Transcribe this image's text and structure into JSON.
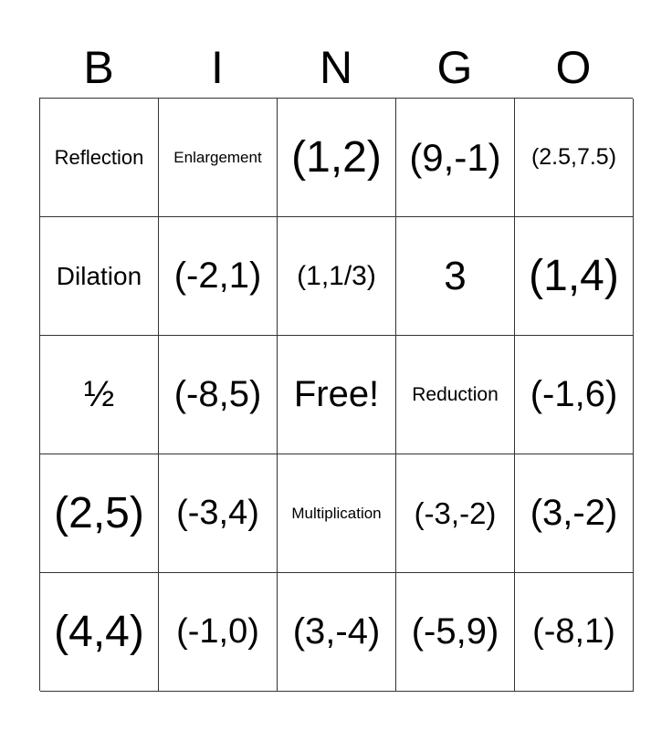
{
  "header": [
    "B",
    "I",
    "N",
    "G",
    "O"
  ],
  "cells": [
    [
      "Reflection",
      "Enlargement",
      "(1,2)",
      "(9,-1)",
      "(2.5,7.5)"
    ],
    [
      "Dilation",
      "(-2,1)",
      "(1,1/3)",
      "3",
      "(1,4)"
    ],
    [
      "½",
      "(-8,5)",
      "Free!",
      "Reduction",
      "(-1,6)"
    ],
    [
      "(2,5)",
      "(-3,4)",
      "Multiplication",
      "(-3,-2)",
      "(3,-2)"
    ],
    [
      "(4,4)",
      "(-1,0)",
      "(3,-4)",
      "(-5,9)",
      "(-8,1)"
    ]
  ]
}
